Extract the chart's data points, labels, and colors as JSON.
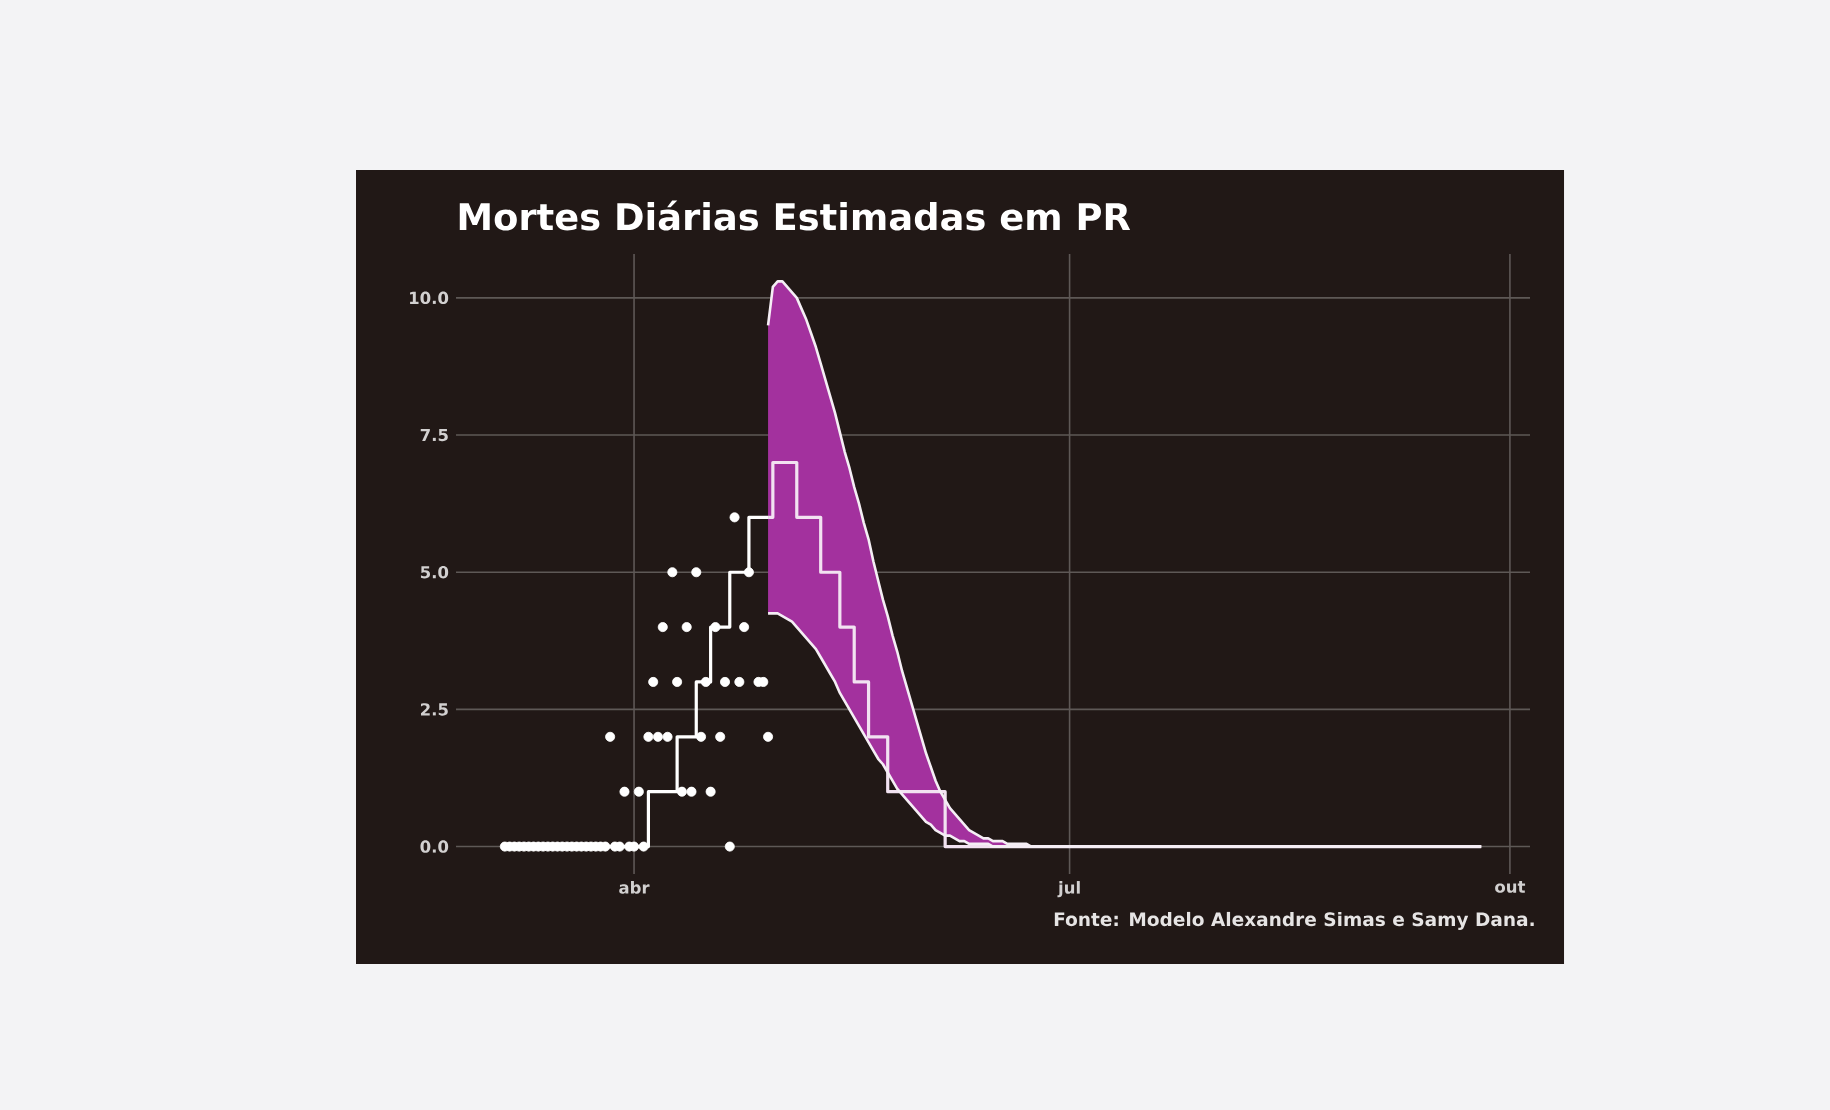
{
  "chart_data": {
    "type": "step",
    "title": "Mortes Diárias Estimadas em PR",
    "annotations": [
      "Fonte: Modelo Alexandre Simas e Samy Dana."
    ],
    "categories": [
      null,
      null,
      null,
      null,
      null,
      null,
      null,
      null,
      null,
      null,
      null,
      null,
      null,
      null,
      null,
      null,
      null,
      null,
      null,
      null,
      null,
      null,
      null,
      null,
      null,
      null,
      null,
      "abr",
      null,
      null,
      null,
      null,
      null,
      null,
      null,
      null,
      null,
      null,
      null,
      null,
      null,
      null,
      null,
      null,
      null,
      null,
      null,
      null,
      null,
      null,
      null,
      null,
      null,
      null,
      null,
      null,
      null,
      null,
      null,
      null,
      null,
      null,
      null,
      null,
      null,
      null,
      null,
      null,
      null,
      null,
      null,
      null,
      null,
      null,
      null,
      null,
      null,
      null,
      null,
      null,
      null,
      null,
      null,
      null,
      null,
      null,
      null,
      null,
      null,
      null,
      null,
      null,
      null,
      null,
      null,
      null,
      null,
      null,
      null,
      null,
      null,
      null,
      null,
      null,
      null,
      null,
      null,
      null,
      null,
      null,
      null,
      null,
      null,
      null,
      null,
      null,
      null,
      null,
      "jul",
      null,
      null,
      null,
      null,
      null,
      null,
      null,
      null,
      null,
      null,
      null,
      null,
      null,
      null,
      null,
      null,
      null,
      null,
      null,
      null,
      null,
      null,
      null,
      null,
      null,
      null,
      null,
      null,
      null,
      null,
      null,
      null,
      null,
      null,
      null,
      null,
      null,
      null,
      null,
      null,
      null,
      null,
      null,
      null,
      null,
      null,
      null,
      null,
      null,
      null,
      null,
      null,
      null,
      null,
      null,
      null,
      null,
      null,
      null,
      null,
      null,
      null,
      null,
      null,
      null,
      null,
      null,
      null,
      null,
      null,
      null,
      null,
      null,
      null,
      null,
      null,
      null,
      null,
      null,
      null,
      null,
      null,
      null,
      null,
      null,
      null,
      null,
      null,
      null,
      null,
      null,
      "out"
    ],
    "ylim": [
      -0.5,
      10.8
    ],
    "yticks": [
      {
        "value": 0,
        "label": "0.0"
      },
      {
        "value": 2.5,
        "label": "2.5"
      },
      {
        "value": 5,
        "label": "5.0"
      },
      {
        "value": 7.5,
        "label": "7.5"
      },
      {
        "value": 10,
        "label": "10.0"
      }
    ],
    "grid": true,
    "series": [
      {
        "type": "scatter",
        "color": "#ffffff",
        "marker": "circle",
        "values": [
          0,
          0,
          0,
          0,
          0,
          0,
          0,
          0,
          0,
          0,
          0,
          0,
          0,
          0,
          0,
          0,
          0,
          0,
          0,
          0,
          0,
          0,
          2,
          0,
          0,
          1,
          0,
          0,
          1,
          0,
          2,
          3,
          2,
          4,
          2,
          5,
          3,
          1,
          4,
          1,
          5,
          2,
          3,
          1,
          4,
          2,
          3,
          0,
          6,
          3,
          4,
          5,
          null,
          3,
          3,
          2,
          null,
          null,
          null,
          null,
          null,
          null,
          null,
          null,
          null,
          null,
          null,
          null,
          null,
          null,
          null,
          null,
          null,
          null,
          null,
          null,
          null,
          null,
          null,
          null,
          null,
          null,
          null,
          null,
          null,
          null,
          null,
          null,
          null,
          null,
          null,
          null,
          null,
          null,
          null,
          null,
          null,
          null,
          null,
          null,
          null,
          null,
          null,
          null,
          null,
          null,
          null,
          null,
          null,
          null,
          null,
          null,
          null,
          null,
          null,
          null,
          null,
          null,
          null,
          null,
          null,
          null,
          null,
          null,
          null,
          null,
          null,
          null,
          null,
          null,
          null,
          null,
          null,
          null,
          null,
          null,
          null,
          null,
          null,
          null,
          null,
          null,
          null,
          null,
          null,
          null,
          null,
          null,
          null,
          null,
          null,
          null,
          null,
          null,
          null,
          null,
          null,
          null,
          null,
          null,
          null,
          null,
          null,
          null,
          null,
          null,
          null,
          null,
          null,
          null,
          null,
          null,
          null,
          null,
          null,
          null,
          null,
          null,
          null,
          null,
          null,
          null,
          null,
          null,
          null,
          null,
          null,
          null,
          null,
          null,
          null,
          null,
          null,
          null,
          null,
          null,
          null,
          null,
          null,
          null,
          null,
          null,
          null,
          null,
          null,
          null,
          null,
          null,
          null,
          null,
          null
        ]
      },
      {
        "color": "#ffffff",
        "values": [
          0,
          0,
          0,
          0,
          0,
          0,
          0,
          0,
          0,
          0,
          0,
          0,
          0,
          0,
          0,
          0,
          0,
          0,
          0,
          0,
          0,
          0,
          0,
          0,
          0,
          0,
          0,
          0,
          0,
          0,
          1,
          1,
          1,
          1,
          1,
          1,
          2,
          2,
          2,
          2,
          3,
          3,
          3,
          4,
          4,
          4,
          4,
          5,
          5,
          5,
          5,
          6,
          6,
          6,
          6,
          6,
          null,
          null,
          null,
          null,
          null,
          null,
          null,
          null,
          null,
          null,
          null,
          null,
          null,
          null,
          null,
          null,
          null,
          null,
          null,
          null,
          null,
          null,
          null,
          null,
          null,
          null,
          null,
          null,
          null,
          null,
          null,
          null,
          null,
          null,
          null,
          null,
          null,
          null,
          null,
          null,
          null,
          null,
          null,
          null,
          null,
          null,
          null,
          null,
          null,
          null,
          null,
          null,
          null,
          null,
          null,
          null,
          null,
          null,
          null,
          null,
          null,
          null,
          null,
          null,
          null,
          null,
          null,
          null,
          null,
          null,
          null,
          null,
          null,
          null,
          null,
          null,
          null,
          null,
          null,
          null,
          null,
          null,
          null,
          null,
          null,
          null,
          null,
          null,
          null,
          null,
          null,
          null,
          null,
          null,
          null,
          null,
          null,
          null,
          null,
          null,
          null,
          null,
          null,
          null,
          null,
          null,
          null,
          null,
          null,
          null,
          null,
          null,
          null,
          null,
          null,
          null,
          null,
          null,
          null,
          null,
          null,
          null,
          null,
          null,
          null,
          null,
          null,
          null,
          null,
          null,
          null,
          null,
          null,
          null,
          null,
          null,
          null,
          null,
          null,
          null,
          null,
          null,
          null,
          null,
          null,
          null,
          null,
          null,
          null,
          null,
          null,
          null,
          null,
          null,
          null
        ]
      },
      {
        "color": "#f2e2f1",
        "values": [
          null,
          null,
          null,
          null,
          null,
          null,
          null,
          null,
          null,
          null,
          null,
          null,
          null,
          null,
          null,
          null,
          null,
          null,
          null,
          null,
          null,
          null,
          null,
          null,
          null,
          null,
          null,
          null,
          null,
          null,
          null,
          null,
          null,
          null,
          null,
          null,
          null,
          null,
          null,
          null,
          null,
          null,
          null,
          null,
          null,
          null,
          null,
          null,
          null,
          null,
          null,
          null,
          null,
          null,
          null,
          6,
          7,
          7,
          7,
          7,
          7,
          6,
          6,
          6,
          6,
          6,
          5,
          5,
          5,
          5,
          4,
          4,
          4,
          3,
          3,
          3,
          2,
          2,
          2,
          2,
          1,
          1,
          1,
          1,
          1,
          1,
          1,
          1,
          1,
          1,
          1,
          1,
          0,
          0,
          0,
          0,
          0,
          0,
          0,
          0,
          0,
          0,
          0,
          0,
          0,
          0,
          0,
          0,
          0,
          0,
          0,
          0,
          0,
          0,
          0,
          0,
          0,
          0,
          0,
          0,
          0,
          0,
          0,
          0,
          0,
          0,
          0,
          0,
          0,
          0,
          0,
          0,
          0,
          0,
          0,
          0,
          0,
          0,
          0,
          0,
          0,
          0,
          0,
          0,
          0,
          0,
          0,
          0,
          0,
          0,
          0,
          0,
          0,
          0,
          0,
          0,
          0,
          0,
          0,
          0,
          0,
          0,
          0,
          0,
          0,
          0,
          0,
          0,
          0,
          0,
          0,
          0,
          0,
          0,
          0,
          0,
          0,
          0,
          0,
          0,
          0,
          0,
          0,
          0,
          0,
          0,
          0,
          0,
          0,
          0,
          0,
          0,
          0,
          0,
          0,
          0,
          0,
          0,
          0,
          0,
          0,
          0,
          0,
          0,
          0,
          null,
          null,
          null,
          null,
          null,
          null
        ]
      },
      {
        "type": "line",
        "color": "#a3319e",
        "values": [
          null,
          null,
          null,
          null,
          null,
          null,
          null,
          null,
          null,
          null,
          null,
          null,
          null,
          null,
          null,
          null,
          null,
          null,
          null,
          null,
          null,
          null,
          null,
          null,
          null,
          null,
          null,
          null,
          null,
          null,
          null,
          null,
          null,
          null,
          null,
          null,
          null,
          null,
          null,
          null,
          null,
          null,
          null,
          null,
          null,
          null,
          null,
          null,
          null,
          null,
          null,
          null,
          null,
          null,
          null,
          null,
          null,
          null,
          null,
          null,
          null,
          null,
          null,
          null,
          null,
          null,
          null,
          null,
          null,
          null,
          null,
          null,
          null,
          null,
          null,
          null,
          null,
          null,
          null,
          null,
          null,
          null,
          null,
          null,
          null,
          null,
          null,
          null,
          null,
          null,
          null,
          null,
          null,
          null,
          null,
          null,
          null,
          null,
          null,
          null,
          null,
          null,
          null,
          null,
          null,
          null,
          null,
          null,
          null,
          null,
          null,
          null,
          null,
          null,
          null,
          null,
          null,
          null,
          null,
          null,
          null,
          null,
          null,
          null,
          null,
          null,
          null,
          null,
          null,
          null,
          null,
          null,
          null,
          null,
          null,
          null,
          null,
          null,
          null,
          null,
          null,
          null,
          null,
          null,
          null,
          null,
          null,
          null,
          null,
          null,
          null,
          null,
          null,
          null,
          null,
          null,
          null,
          null,
          null,
          null,
          null,
          null,
          null,
          null,
          null,
          null,
          null,
          null,
          null,
          null,
          null,
          null,
          null,
          null,
          null,
          null,
          null,
          null,
          null,
          null,
          null,
          null,
          null,
          null,
          null,
          null,
          null,
          null,
          null,
          null,
          null,
          null,
          null,
          null,
          null,
          null,
          null,
          null,
          null,
          null,
          null,
          null,
          null,
          null,
          null,
          null,
          null,
          null,
          null,
          null,
          null
        ],
        "lower": [
          null,
          null,
          null,
          null,
          null,
          null,
          null,
          null,
          null,
          null,
          null,
          null,
          null,
          null,
          null,
          null,
          null,
          null,
          null,
          null,
          null,
          null,
          null,
          null,
          null,
          null,
          null,
          null,
          null,
          null,
          null,
          null,
          null,
          null,
          null,
          null,
          null,
          null,
          null,
          null,
          null,
          null,
          null,
          null,
          null,
          null,
          null,
          null,
          null,
          null,
          null,
          null,
          null,
          null,
          null,
          4.25,
          4.25,
          4.25,
          4.2,
          4.15,
          4.1,
          4.0,
          3.9,
          3.8,
          3.7,
          3.6,
          3.45,
          3.3,
          3.15,
          3.0,
          2.8,
          2.65,
          2.5,
          2.35,
          2.2,
          2.05,
          1.9,
          1.75,
          1.6,
          1.5,
          1.35,
          1.2,
          1.05,
          0.95,
          0.85,
          0.75,
          0.65,
          0.55,
          0.45,
          0.4,
          0.3,
          0.25,
          0.2,
          0.2,
          0.15,
          0.1,
          0.1,
          0.05,
          0.05,
          0.05,
          0.05,
          0.05,
          0,
          0,
          0,
          0,
          0,
          0,
          0,
          0,
          0,
          0,
          0,
          0,
          0,
          0,
          0,
          0,
          0,
          0,
          0,
          0,
          0,
          0,
          0,
          0,
          0,
          0,
          0,
          0,
          0,
          0,
          0,
          0,
          0,
          0,
          0,
          0,
          0,
          0,
          0,
          0,
          0,
          0,
          0,
          0,
          0,
          0,
          0,
          0,
          0,
          0,
          0,
          0,
          0,
          0,
          0,
          0,
          0,
          0,
          0,
          0,
          0,
          0,
          0,
          0,
          0,
          0,
          0,
          0,
          0,
          0,
          0,
          0,
          0,
          0,
          0,
          0,
          0,
          0,
          0,
          0,
          0,
          0,
          0,
          0,
          0,
          0,
          0,
          0,
          0,
          0,
          0,
          0,
          0,
          0,
          0,
          0,
          0,
          0,
          0,
          0,
          0,
          0,
          0,
          null,
          null,
          null,
          null,
          null,
          null
        ],
        "upper": [
          null,
          null,
          null,
          null,
          null,
          null,
          null,
          null,
          null,
          null,
          null,
          null,
          null,
          null,
          null,
          null,
          null,
          null,
          null,
          null,
          null,
          null,
          null,
          null,
          null,
          null,
          null,
          null,
          null,
          null,
          null,
          null,
          null,
          null,
          null,
          null,
          null,
          null,
          null,
          null,
          null,
          null,
          null,
          null,
          null,
          null,
          null,
          null,
          null,
          null,
          null,
          null,
          null,
          null,
          null,
          9.5,
          10.2,
          10.3,
          10.3,
          10.2,
          10.1,
          10.0,
          9.8,
          9.6,
          9.35,
          9.1,
          8.8,
          8.5,
          8.2,
          7.9,
          7.55,
          7.2,
          6.9,
          6.55,
          6.25,
          5.9,
          5.6,
          5.2,
          4.85,
          4.5,
          4.2,
          3.85,
          3.55,
          3.2,
          2.9,
          2.6,
          2.3,
          2.0,
          1.7,
          1.45,
          1.2,
          1.0,
          0.85,
          0.7,
          0.6,
          0.5,
          0.4,
          0.3,
          0.25,
          0.2,
          0.15,
          0.15,
          0.1,
          0.1,
          0.1,
          0.05,
          0.05,
          0.05,
          0.05,
          0.05,
          0,
          0,
          0,
          0,
          0,
          0,
          0,
          0,
          0,
          0,
          0,
          0,
          0,
          0,
          0,
          0,
          0,
          0,
          0,
          0,
          0,
          0,
          0,
          0,
          0,
          0,
          0,
          0,
          0,
          0,
          0,
          0,
          0,
          0,
          0,
          0,
          0,
          0,
          0,
          0,
          0,
          0,
          0,
          0,
          0,
          0,
          0,
          0,
          0,
          0,
          0,
          0,
          0,
          0,
          0,
          0,
          0,
          0,
          0,
          0,
          0,
          0,
          0,
          0,
          0,
          0,
          0,
          0,
          0,
          0,
          0,
          0,
          0,
          0,
          0,
          0,
          0,
          0,
          0,
          0,
          0,
          0,
          0,
          0,
          0,
          0,
          0,
          0,
          0,
          0,
          0,
          0,
          0,
          0,
          0,
          null,
          null,
          null,
          null,
          null,
          null
        ]
      },
      {
        "type": "line",
        "color": "#f5eef5",
        "values": [
          null,
          null,
          null,
          null,
          null,
          null,
          null,
          null,
          null,
          null,
          null,
          null,
          null,
          null,
          null,
          null,
          null,
          null,
          null,
          null,
          null,
          null,
          null,
          null,
          null,
          null,
          null,
          null,
          null,
          null,
          null,
          null,
          null,
          null,
          null,
          null,
          null,
          null,
          null,
          null,
          null,
          null,
          null,
          null,
          null,
          null,
          null,
          null,
          null,
          null,
          null,
          null,
          null,
          null,
          null,
          9.5,
          10.2,
          10.3,
          10.3,
          10.2,
          10.1,
          10.0,
          9.8,
          9.6,
          9.35,
          9.1,
          8.8,
          8.5,
          8.2,
          7.9,
          7.55,
          7.2,
          6.9,
          6.55,
          6.25,
          5.9,
          5.6,
          5.2,
          4.85,
          4.5,
          4.2,
          3.85,
          3.55,
          3.2,
          2.9,
          2.6,
          2.3,
          2.0,
          1.7,
          1.45,
          1.2,
          1.0,
          0.85,
          0.7,
          0.6,
          0.5,
          0.4,
          0.3,
          0.25,
          0.2,
          0.15,
          0.15,
          0.1,
          0.1,
          0.1,
          0.05,
          0.05,
          0.05,
          0.05,
          0.05,
          0,
          0,
          0,
          0,
          0,
          0,
          0,
          0,
          0,
          0,
          0,
          0,
          0,
          0,
          0,
          0,
          0,
          0,
          0,
          0,
          0,
          0,
          0,
          0,
          0,
          0,
          0,
          0,
          0,
          0,
          0,
          0,
          0,
          0,
          0,
          0,
          0,
          0,
          0,
          0,
          0,
          0,
          0,
          0,
          0,
          0,
          0,
          0,
          0,
          0,
          0,
          0,
          0,
          0,
          0,
          0,
          0,
          0,
          0,
          0,
          0,
          0,
          0,
          0,
          0,
          0,
          0,
          0,
          0,
          0,
          0,
          0,
          0,
          0,
          0,
          0,
          0,
          0,
          0,
          0,
          0,
          0,
          0,
          0,
          0,
          0,
          0,
          0,
          0,
          0,
          0,
          0,
          0,
          0,
          0,
          null,
          null,
          null,
          null,
          null,
          null
        ]
      },
      {
        "type": "line",
        "color": "#f5eef5",
        "values": [
          null,
          null,
          null,
          null,
          null,
          null,
          null,
          null,
          null,
          null,
          null,
          null,
          null,
          null,
          null,
          null,
          null,
          null,
          null,
          null,
          null,
          null,
          null,
          null,
          null,
          null,
          null,
          null,
          null,
          null,
          null,
          null,
          null,
          null,
          null,
          null,
          null,
          null,
          null,
          null,
          null,
          null,
          null,
          null,
          null,
          null,
          null,
          null,
          null,
          null,
          null,
          null,
          null,
          null,
          null,
          4.25,
          4.25,
          4.25,
          4.2,
          4.15,
          4.1,
          4.0,
          3.9,
          3.8,
          3.7,
          3.6,
          3.45,
          3.3,
          3.15,
          3.0,
          2.8,
          2.65,
          2.5,
          2.35,
          2.2,
          2.05,
          1.9,
          1.75,
          1.6,
          1.5,
          1.35,
          1.2,
          1.05,
          0.95,
          0.85,
          0.75,
          0.65,
          0.55,
          0.45,
          0.4,
          0.3,
          0.25,
          0.2,
          0.2,
          0.15,
          0.1,
          0.1,
          0.05,
          0.05,
          0.05,
          0.05,
          0.05,
          0,
          0,
          0,
          0,
          0,
          0,
          0,
          0,
          0,
          0,
          0,
          0,
          0,
          0,
          0,
          0,
          0,
          0,
          0,
          0,
          0,
          0,
          0,
          0,
          0,
          0,
          0,
          0,
          0,
          0,
          0,
          0,
          0,
          0,
          0,
          0,
          0,
          0,
          0,
          0,
          0,
          0,
          0,
          0,
          0,
          0,
          0,
          0,
          0,
          0,
          0,
          0,
          0,
          0,
          0,
          0,
          0,
          0,
          0,
          0,
          0,
          0,
          0,
          0,
          0,
          0,
          0,
          0,
          0,
          0,
          0,
          0,
          0,
          0,
          0,
          0,
          0,
          0,
          0,
          0,
          0,
          0,
          0,
          0,
          0,
          0,
          0,
          0,
          0,
          0,
          0,
          0,
          0,
          0,
          0,
          0,
          0,
          0,
          0,
          0,
          0,
          0,
          0,
          null,
          null,
          null,
          null,
          null,
          null
        ]
      }
    ]
  }
}
